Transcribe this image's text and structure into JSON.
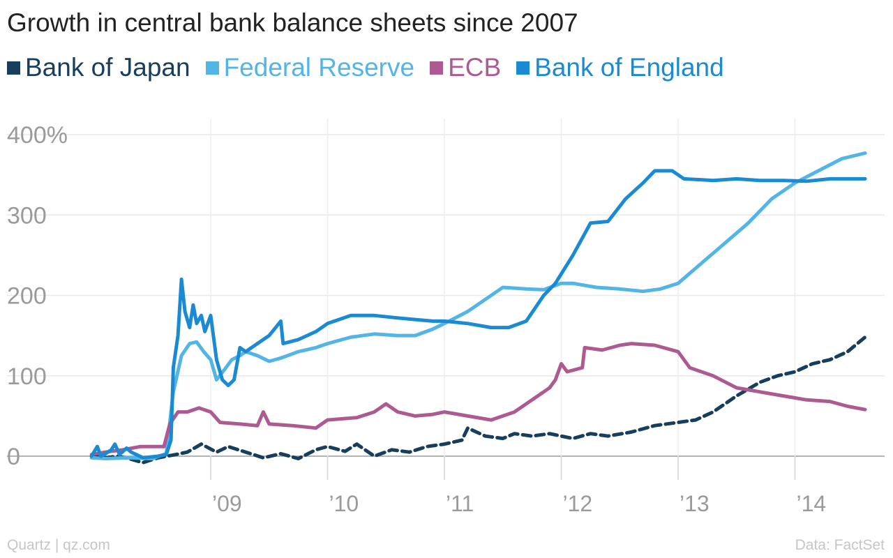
{
  "chart_data": {
    "type": "line",
    "title": "Growth in central bank balance sheets since 2007",
    "ylim": [
      -20,
      420
    ],
    "xlim": [
      2007.85,
      2014.8
    ],
    "y_ticks": [
      {
        "value": 400,
        "label": "400%"
      },
      {
        "value": 300,
        "label": "300"
      },
      {
        "value": 200,
        "label": "200"
      },
      {
        "value": 100,
        "label": "100"
      },
      {
        "value": 0,
        "label": "0"
      }
    ],
    "x_ticks": [
      {
        "value": 2009,
        "label": "’09"
      },
      {
        "value": 2010,
        "label": "’10"
      },
      {
        "value": 2011,
        "label": "’11"
      },
      {
        "value": 2012,
        "label": "’12"
      },
      {
        "value": 2013,
        "label": "’13"
      },
      {
        "value": 2014,
        "label": "’14"
      }
    ],
    "grid": true,
    "legend_position": "top-left",
    "series": [
      {
        "name": "Bank of Japan",
        "color": "#173e5c",
        "dashed": true,
        "points": [
          [
            2007.98,
            0
          ],
          [
            2008.1,
            -2
          ],
          [
            2008.2,
            0
          ],
          [
            2008.3,
            -3
          ],
          [
            2008.42,
            -8
          ],
          [
            2008.55,
            -2
          ],
          [
            2008.7,
            2
          ],
          [
            2008.8,
            5
          ],
          [
            2008.92,
            15
          ],
          [
            2009.05,
            5
          ],
          [
            2009.15,
            12
          ],
          [
            2009.3,
            5
          ],
          [
            2009.45,
            -2
          ],
          [
            2009.6,
            3
          ],
          [
            2009.75,
            -3
          ],
          [
            2009.9,
            8
          ],
          [
            2010.0,
            12
          ],
          [
            2010.15,
            6
          ],
          [
            2010.25,
            15
          ],
          [
            2010.4,
            0
          ],
          [
            2010.55,
            8
          ],
          [
            2010.7,
            5
          ],
          [
            2010.85,
            12
          ],
          [
            2011.0,
            15
          ],
          [
            2011.15,
            20
          ],
          [
            2011.2,
            35
          ],
          [
            2011.35,
            25
          ],
          [
            2011.5,
            22
          ],
          [
            2011.6,
            28
          ],
          [
            2011.75,
            25
          ],
          [
            2011.9,
            28
          ],
          [
            2012.0,
            25
          ],
          [
            2012.1,
            22
          ],
          [
            2012.25,
            28
          ],
          [
            2012.4,
            25
          ],
          [
            2012.6,
            30
          ],
          [
            2012.8,
            38
          ],
          [
            2013.0,
            42
          ],
          [
            2013.15,
            45
          ],
          [
            2013.3,
            55
          ],
          [
            2013.5,
            75
          ],
          [
            2013.7,
            92
          ],
          [
            2013.85,
            100
          ],
          [
            2014.0,
            105
          ],
          [
            2014.15,
            115
          ],
          [
            2014.3,
            120
          ],
          [
            2014.45,
            130
          ],
          [
            2014.6,
            148
          ]
        ]
      },
      {
        "name": "Federal Reserve",
        "color": "#53b4e6",
        "dashed": false,
        "points": [
          [
            2007.98,
            -2
          ],
          [
            2008.1,
            -3
          ],
          [
            2008.3,
            -2
          ],
          [
            2008.5,
            -3
          ],
          [
            2008.62,
            3
          ],
          [
            2008.68,
            80
          ],
          [
            2008.75,
            125
          ],
          [
            2008.82,
            140
          ],
          [
            2008.88,
            142
          ],
          [
            2008.94,
            130
          ],
          [
            2009.0,
            120
          ],
          [
            2009.05,
            95
          ],
          [
            2009.12,
            108
          ],
          [
            2009.18,
            120
          ],
          [
            2009.25,
            125
          ],
          [
            2009.3,
            130
          ],
          [
            2009.4,
            125
          ],
          [
            2009.5,
            118
          ],
          [
            2009.6,
            122
          ],
          [
            2009.75,
            130
          ],
          [
            2009.9,
            135
          ],
          [
            2010.0,
            140
          ],
          [
            2010.2,
            148
          ],
          [
            2010.4,
            152
          ],
          [
            2010.6,
            150
          ],
          [
            2010.75,
            150
          ],
          [
            2010.9,
            158
          ],
          [
            2011.0,
            165
          ],
          [
            2011.2,
            180
          ],
          [
            2011.35,
            195
          ],
          [
            2011.5,
            210
          ],
          [
            2011.7,
            208
          ],
          [
            2011.85,
            207
          ],
          [
            2012.0,
            215
          ],
          [
            2012.1,
            215
          ],
          [
            2012.3,
            210
          ],
          [
            2012.5,
            208
          ],
          [
            2012.7,
            205
          ],
          [
            2012.85,
            208
          ],
          [
            2013.0,
            215
          ],
          [
            2013.2,
            240
          ],
          [
            2013.4,
            265
          ],
          [
            2013.6,
            290
          ],
          [
            2013.8,
            320
          ],
          [
            2014.0,
            340
          ],
          [
            2014.2,
            355
          ],
          [
            2014.4,
            370
          ],
          [
            2014.6,
            377
          ]
        ]
      },
      {
        "name": "ECB",
        "color": "#ad5a91",
        "dashed": false,
        "points": [
          [
            2007.98,
            2
          ],
          [
            2008.1,
            5
          ],
          [
            2008.25,
            8
          ],
          [
            2008.4,
            12
          ],
          [
            2008.6,
            12
          ],
          [
            2008.65,
            40
          ],
          [
            2008.72,
            55
          ],
          [
            2008.8,
            55
          ],
          [
            2008.9,
            60
          ],
          [
            2009.0,
            55
          ],
          [
            2009.08,
            42
          ],
          [
            2009.25,
            40
          ],
          [
            2009.4,
            38
          ],
          [
            2009.45,
            55
          ],
          [
            2009.5,
            40
          ],
          [
            2009.7,
            38
          ],
          [
            2009.9,
            35
          ],
          [
            2010.0,
            45
          ],
          [
            2010.25,
            48
          ],
          [
            2010.4,
            55
          ],
          [
            2010.5,
            65
          ],
          [
            2010.6,
            55
          ],
          [
            2010.75,
            50
          ],
          [
            2010.9,
            52
          ],
          [
            2011.0,
            55
          ],
          [
            2011.2,
            50
          ],
          [
            2011.4,
            45
          ],
          [
            2011.6,
            55
          ],
          [
            2011.75,
            70
          ],
          [
            2011.9,
            85
          ],
          [
            2011.95,
            95
          ],
          [
            2012.0,
            115
          ],
          [
            2012.05,
            105
          ],
          [
            2012.18,
            110
          ],
          [
            2012.2,
            135
          ],
          [
            2012.35,
            132
          ],
          [
            2012.5,
            138
          ],
          [
            2012.6,
            140
          ],
          [
            2012.8,
            138
          ],
          [
            2013.0,
            130
          ],
          [
            2013.1,
            110
          ],
          [
            2013.3,
            100
          ],
          [
            2013.5,
            85
          ],
          [
            2013.7,
            80
          ],
          [
            2013.9,
            75
          ],
          [
            2014.1,
            70
          ],
          [
            2014.3,
            68
          ],
          [
            2014.45,
            62
          ],
          [
            2014.6,
            58
          ]
        ]
      },
      {
        "name": "Bank of England",
        "color": "#1a8bd3",
        "dashed": false,
        "points": [
          [
            2007.98,
            0
          ],
          [
            2008.03,
            12
          ],
          [
            2008.06,
            0
          ],
          [
            2008.1,
            3
          ],
          [
            2008.15,
            8
          ],
          [
            2008.18,
            15
          ],
          [
            2008.22,
            2
          ],
          [
            2008.28,
            10
          ],
          [
            2008.32,
            5
          ],
          [
            2008.42,
            -2
          ],
          [
            2008.55,
            0
          ],
          [
            2008.62,
            2
          ],
          [
            2008.66,
            20
          ],
          [
            2008.68,
            110
          ],
          [
            2008.72,
            150
          ],
          [
            2008.75,
            220
          ],
          [
            2008.78,
            180
          ],
          [
            2008.82,
            160
          ],
          [
            2008.85,
            188
          ],
          [
            2008.88,
            165
          ],
          [
            2008.92,
            175
          ],
          [
            2008.95,
            155
          ],
          [
            2009.0,
            175
          ],
          [
            2009.05,
            120
          ],
          [
            2009.1,
            95
          ],
          [
            2009.15,
            88
          ],
          [
            2009.2,
            95
          ],
          [
            2009.25,
            135
          ],
          [
            2009.3,
            130
          ],
          [
            2009.4,
            140
          ],
          [
            2009.5,
            150
          ],
          [
            2009.6,
            168
          ],
          [
            2009.62,
            140
          ],
          [
            2009.75,
            145
          ],
          [
            2009.9,
            155
          ],
          [
            2010.0,
            165
          ],
          [
            2010.2,
            175
          ],
          [
            2010.4,
            175
          ],
          [
            2010.6,
            172
          ],
          [
            2010.75,
            170
          ],
          [
            2010.9,
            168
          ],
          [
            2011.0,
            168
          ],
          [
            2011.2,
            165
          ],
          [
            2011.4,
            160
          ],
          [
            2011.55,
            160
          ],
          [
            2011.7,
            168
          ],
          [
            2011.85,
            200
          ],
          [
            2011.95,
            215
          ],
          [
            2012.1,
            250
          ],
          [
            2012.25,
            290
          ],
          [
            2012.4,
            292
          ],
          [
            2012.55,
            320
          ],
          [
            2012.7,
            340
          ],
          [
            2012.8,
            355
          ],
          [
            2012.95,
            355
          ],
          [
            2013.05,
            345
          ],
          [
            2013.3,
            343
          ],
          [
            2013.5,
            345
          ],
          [
            2013.7,
            343
          ],
          [
            2013.9,
            343
          ],
          [
            2014.1,
            342
          ],
          [
            2014.3,
            345
          ],
          [
            2014.6,
            345
          ]
        ]
      }
    ]
  },
  "footer": {
    "source_left": "Quartz | qz.com",
    "source_right": "Data: FactSet"
  }
}
